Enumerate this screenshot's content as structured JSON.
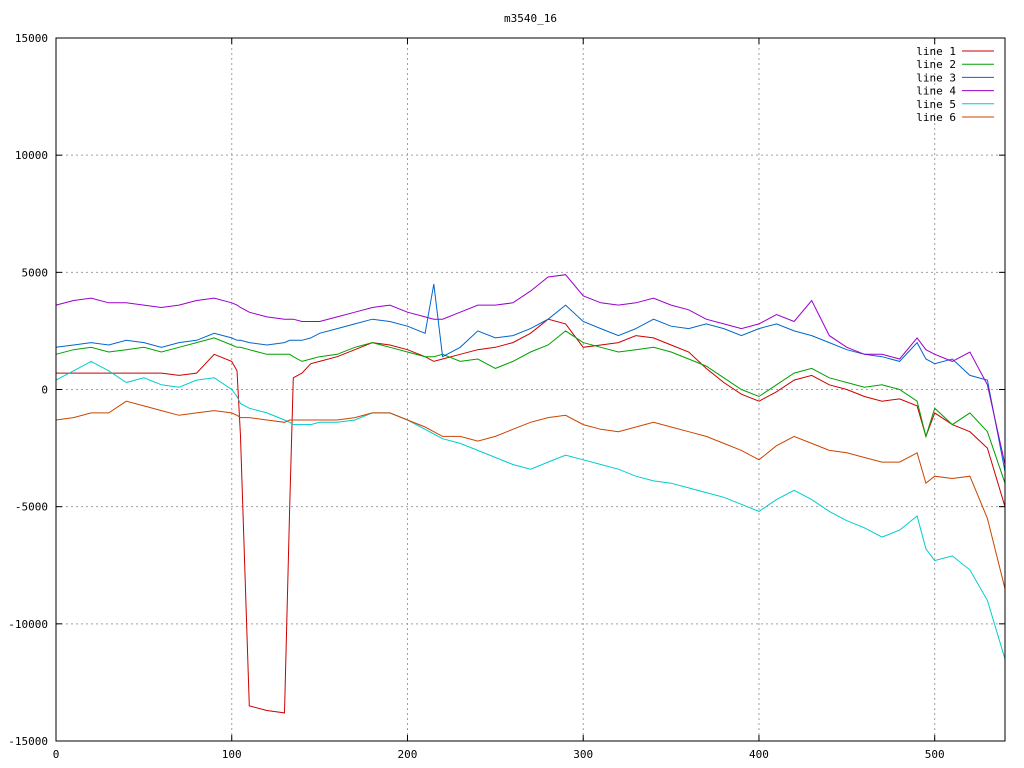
{
  "chart_data": {
    "type": "line",
    "title": "m3540_16",
    "xlabel": "",
    "ylabel": "",
    "xlim": [
      0,
      540
    ],
    "ylim": [
      -15000,
      15000
    ],
    "x_ticks": [
      0,
      100,
      200,
      300,
      400,
      500
    ],
    "y_ticks": [
      -15000,
      -10000,
      -5000,
      0,
      5000,
      10000,
      15000
    ],
    "grid": true,
    "legend_position": "top-right",
    "x": [
      0,
      10,
      20,
      30,
      40,
      50,
      60,
      70,
      80,
      90,
      100,
      103,
      105,
      110,
      120,
      130,
      133,
      135,
      140,
      145,
      150,
      160,
      170,
      180,
      190,
      200,
      210,
      215,
      220,
      230,
      240,
      250,
      260,
      270,
      280,
      290,
      300,
      310,
      320,
      330,
      340,
      350,
      360,
      370,
      380,
      390,
      400,
      410,
      420,
      430,
      440,
      450,
      460,
      470,
      480,
      490,
      495,
      500,
      510,
      520,
      530,
      540
    ],
    "series": [
      {
        "name": "line 1",
        "color": "#cc0000",
        "values": [
          700,
          700,
          700,
          700,
          700,
          700,
          700,
          600,
          700,
          1500,
          1200,
          800,
          -2000,
          -13500,
          -13700,
          -13800,
          -5000,
          500,
          700,
          1100,
          1200,
          1400,
          1700,
          2000,
          1900,
          1700,
          1400,
          1200,
          1300,
          1500,
          1700,
          1800,
          2000,
          2400,
          3000,
          2800,
          1800,
          1900,
          2000,
          2300,
          2200,
          1900,
          1600,
          900,
          300,
          -200,
          -500,
          -100,
          400,
          600,
          200,
          0,
          -300,
          -500,
          -400,
          -700,
          -2000,
          -1000,
          -1500,
          -1800,
          -2500,
          -5000
        ]
      },
      {
        "name": "line 2",
        "color": "#00a000",
        "values": [
          1500,
          1700,
          1800,
          1600,
          1700,
          1800,
          1600,
          1800,
          2000,
          2200,
          1900,
          1800,
          1800,
          1700,
          1500,
          1500,
          1500,
          1400,
          1200,
          1300,
          1400,
          1500,
          1800,
          2000,
          1800,
          1600,
          1400,
          1400,
          1500,
          1200,
          1300,
          900,
          1200,
          1600,
          1900,
          2500,
          2000,
          1800,
          1600,
          1700,
          1800,
          1600,
          1300,
          1000,
          500,
          0,
          -300,
          200,
          700,
          900,
          500,
          300,
          100,
          200,
          0,
          -500,
          -2000,
          -800,
          -1500,
          -1000,
          -1800,
          -4000
        ]
      },
      {
        "name": "line 3",
        "color": "#0066cc",
        "values": [
          1800,
          1900,
          2000,
          1900,
          2100,
          2000,
          1800,
          2000,
          2100,
          2400,
          2200,
          2100,
          2100,
          2000,
          1900,
          2000,
          2100,
          2100,
          2100,
          2200,
          2400,
          2600,
          2800,
          3000,
          2900,
          2700,
          2400,
          4500,
          1400,
          1800,
          2500,
          2200,
          2300,
          2600,
          3000,
          3600,
          2900,
          2600,
          2300,
          2600,
          3000,
          2700,
          2600,
          2800,
          2600,
          2300,
          2600,
          2800,
          2500,
          2300,
          2000,
          1700,
          1500,
          1400,
          1200,
          2000,
          1300,
          1100,
          1300,
          600,
          400,
          -3500
        ]
      },
      {
        "name": "line 4",
        "color": "#9900cc",
        "values": [
          3600,
          3800,
          3900,
          3700,
          3700,
          3600,
          3500,
          3600,
          3800,
          3900,
          3700,
          3600,
          3500,
          3300,
          3100,
          3000,
          3000,
          3000,
          2900,
          2900,
          2900,
          3100,
          3300,
          3500,
          3600,
          3300,
          3100,
          3000,
          3000,
          3300,
          3600,
          3600,
          3700,
          4200,
          4800,
          4900,
          4000,
          3700,
          3600,
          3700,
          3900,
          3600,
          3400,
          3000,
          2800,
          2600,
          2800,
          3200,
          2900,
          3800,
          2300,
          1800,
          1500,
          1500,
          1300,
          2200,
          1700,
          1500,
          1200,
          1600,
          200,
          -3200
        ]
      },
      {
        "name": "line 5",
        "color": "#00cccc",
        "values": [
          400,
          800,
          1200,
          800,
          300,
          500,
          200,
          100,
          400,
          500,
          0,
          -300,
          -600,
          -800,
          -1000,
          -1300,
          -1400,
          -1500,
          -1500,
          -1500,
          -1400,
          -1400,
          -1300,
          -1000,
          -1000,
          -1300,
          -1700,
          -1900,
          -2100,
          -2300,
          -2600,
          -2900,
          -3200,
          -3400,
          -3100,
          -2800,
          -3000,
          -3200,
          -3400,
          -3700,
          -3900,
          -4000,
          -4200,
          -4400,
          -4600,
          -4900,
          -5200,
          -4700,
          -4300,
          -4700,
          -5200,
          -5600,
          -5900,
          -6300,
          -6000,
          -5400,
          -6800,
          -7300,
          -7100,
          -7700,
          -9000,
          -11500
        ]
      },
      {
        "name": "line 6",
        "color": "#cc4400",
        "values": [
          -1300,
          -1200,
          -1000,
          -1000,
          -500,
          -700,
          -900,
          -1100,
          -1000,
          -900,
          -1000,
          -1100,
          -1200,
          -1200,
          -1300,
          -1400,
          -1300,
          -1300,
          -1300,
          -1300,
          -1300,
          -1300,
          -1200,
          -1000,
          -1000,
          -1300,
          -1600,
          -1800,
          -2000,
          -2000,
          -2200,
          -2000,
          -1700,
          -1400,
          -1200,
          -1100,
          -1500,
          -1700,
          -1800,
          -1600,
          -1400,
          -1600,
          -1800,
          -2000,
          -2300,
          -2600,
          -3000,
          -2400,
          -2000,
          -2300,
          -2600,
          -2700,
          -2900,
          -3100,
          -3100,
          -2700,
          -4000,
          -3700,
          -3800,
          -3700,
          -5500,
          -8500
        ]
      }
    ]
  }
}
